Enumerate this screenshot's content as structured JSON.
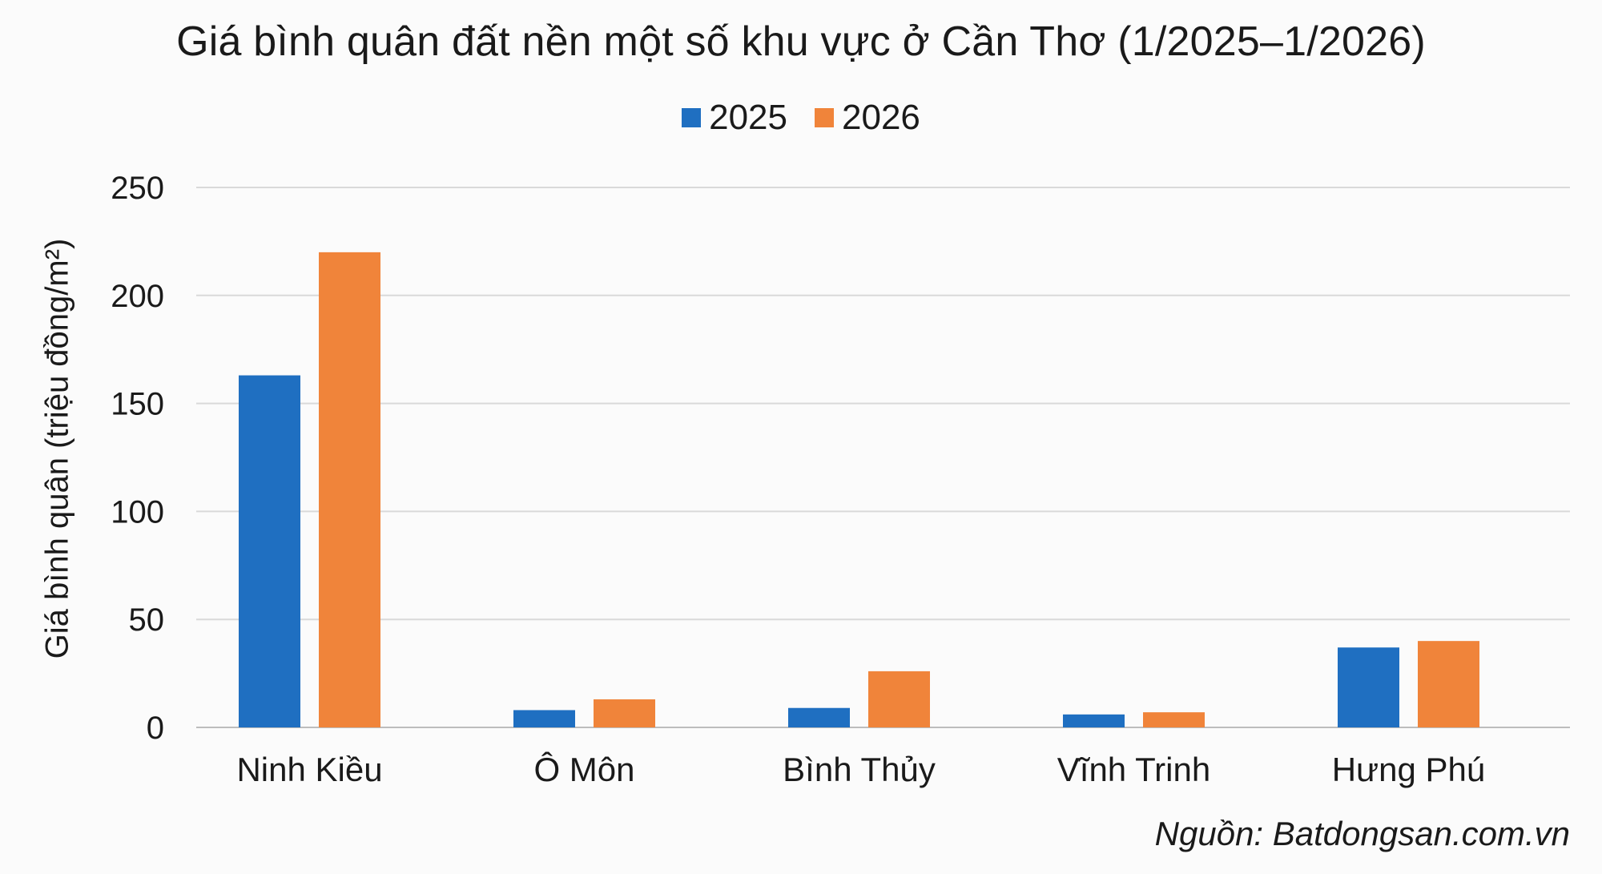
{
  "chart_data": {
    "type": "bar",
    "title": "Giá bình quân đất nền một số khu vực ở Cần Thơ (1/2025–1/2026)",
    "ylabel": "Giá bình quân (triệu đồng/m²)",
    "xlabel": "",
    "categories": [
      "Ninh Kiều",
      "Ô Môn",
      "Bình Thủy",
      "Vĩnh Trinh",
      "Hưng Phú"
    ],
    "series": [
      {
        "name": "2025",
        "color": "#1f6fc1",
        "values": [
          163,
          8,
          9,
          6,
          37
        ]
      },
      {
        "name": "2026",
        "color": "#f0843a",
        "values": [
          220,
          13,
          26,
          7,
          40
        ]
      }
    ],
    "ylim": [
      0,
      250
    ],
    "yticks": [
      0,
      50,
      100,
      150,
      200,
      250
    ],
    "grid": true,
    "legend_position": "top-center",
    "source": "Nguồn: Batdongsan.com.vn"
  }
}
